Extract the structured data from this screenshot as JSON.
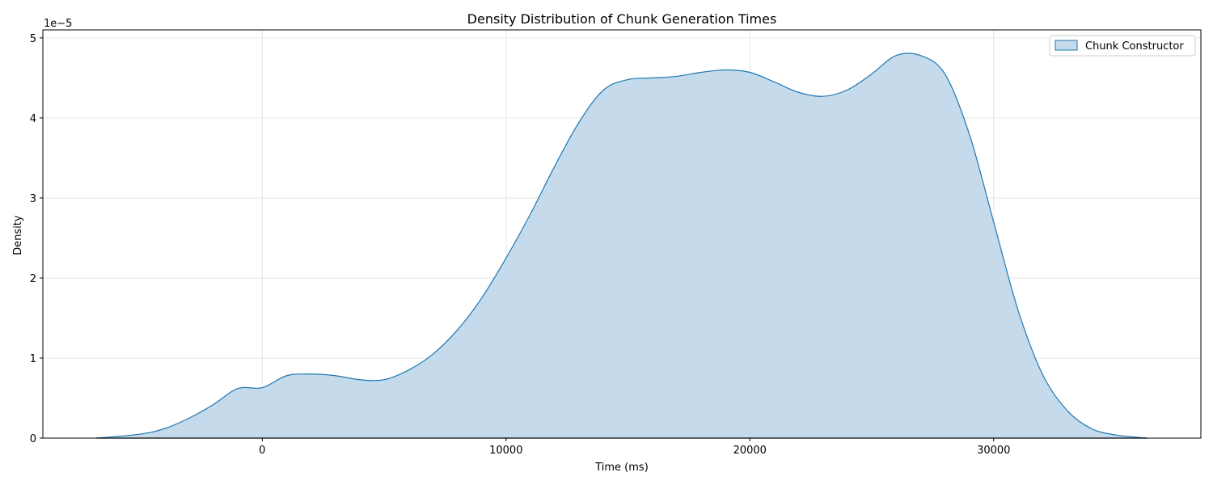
{
  "chart_data": {
    "type": "area",
    "title": "Density Distribution of Chunk Generation Times",
    "xlabel": "Time (ms)",
    "ylabel": "Density",
    "y_offset_label": "1e−5",
    "xlim": [
      -9000,
      38500
    ],
    "ylim": [
      0,
      5.1
    ],
    "x_ticks": [
      0,
      10000,
      20000,
      30000
    ],
    "x_tick_labels": [
      "0",
      "10000",
      "20000",
      "30000"
    ],
    "y_ticks": [
      0,
      1,
      2,
      3,
      4,
      5
    ],
    "y_tick_labels": [
      "0",
      "1",
      "2",
      "3",
      "4",
      "5"
    ],
    "grid": true,
    "legend_position": "top-right",
    "colors": {
      "line": "#1f77b4",
      "fill": "#c5dbeb",
      "grid": "#e6e6e6"
    },
    "series": [
      {
        "name": "Chunk Constructor",
        "x": [
          -6800,
          -5000,
          -4000,
          -3000,
          -2000,
          -1000,
          0,
          1000,
          2000,
          3000,
          4000,
          5000,
          6000,
          7000,
          8000,
          9000,
          10000,
          11000,
          12000,
          13000,
          14000,
          15000,
          16000,
          17000,
          18000,
          19000,
          20000,
          21000,
          22000,
          23000,
          24000,
          25000,
          26000,
          27000,
          28000,
          29000,
          30000,
          31000,
          32000,
          33000,
          34000,
          35000,
          36300
        ],
        "y": [
          0.0,
          0.05,
          0.12,
          0.25,
          0.42,
          0.62,
          0.63,
          0.78,
          0.8,
          0.78,
          0.73,
          0.73,
          0.85,
          1.05,
          1.35,
          1.75,
          2.25,
          2.8,
          3.4,
          3.95,
          4.35,
          4.48,
          4.5,
          4.52,
          4.57,
          4.6,
          4.57,
          4.45,
          4.32,
          4.27,
          4.35,
          4.55,
          4.78,
          4.78,
          4.55,
          3.8,
          2.7,
          1.6,
          0.8,
          0.35,
          0.12,
          0.04,
          0.0
        ]
      }
    ]
  }
}
